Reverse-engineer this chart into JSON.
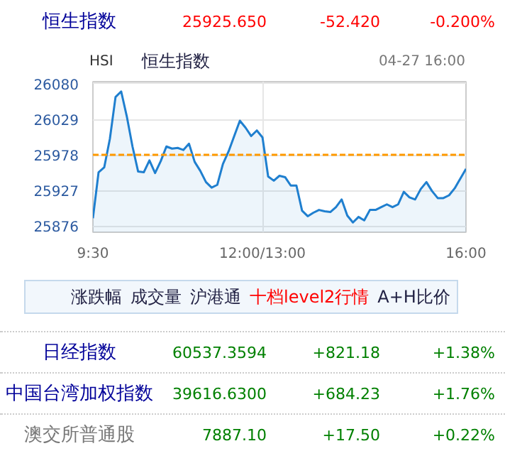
{
  "chart_data": [
    {
      "type": "area",
      "title": "恒生指数",
      "subtitle": "恒生指数",
      "annotations": [
        "25925.650",
        "-52.420",
        "-0.200%",
        "HSI",
        "04-27 16:00"
      ],
      "categories": [
        "9:30",
        null,
        null,
        null,
        null,
        null,
        null,
        null,
        null,
        null,
        null,
        null,
        null,
        null,
        null,
        null,
        null,
        null,
        null,
        null,
        null,
        null,
        null,
        null,
        null,
        null,
        null,
        null,
        null,
        null,
        "12:00/13:00",
        null,
        null,
        null,
        null,
        null,
        null,
        null,
        null,
        null,
        null,
        null,
        null,
        null,
        null,
        null,
        null,
        null,
        null,
        null,
        null,
        null,
        null,
        null,
        null,
        null,
        null,
        null,
        null,
        null,
        null,
        null,
        null,
        null,
        null,
        null,
        "16:00"
      ],
      "series": [
        {
          "color": "#1f7fcf",
          "values": [
            25887,
            25953,
            25960,
            26001,
            26061,
            26069,
            26033,
            25990,
            25954,
            25953,
            25970,
            25952,
            25969,
            25990,
            25987,
            25988,
            25985,
            25994,
            25968,
            25955,
            25939,
            25931,
            25935,
            25965,
            25983,
            26005,
            26027,
            26017,
            26005,
            26013,
            26003,
            25947,
            25941,
            25948,
            25946,
            25934,
            25934,
            25898,
            25890,
            25895,
            25899,
            25897,
            25896,
            25903,
            25914,
            25891,
            25881,
            25889,
            25884,
            25899,
            25899,
            25903,
            25907,
            25903,
            25907,
            25925,
            25917,
            25914,
            25929,
            25939,
            25926,
            25916,
            25916,
            25920,
            25930,
            25944,
            25958
          ]
        }
      ],
      "ylim": [
        25867,
        26083
      ],
      "yticks": [
        25876,
        25927,
        25978,
        26029,
        26080
      ],
      "ref_lines": [
        {
          "axis": "y",
          "value": 25978,
          "color": "#ff9900",
          "line_style": "dashed"
        }
      ],
      "grid": true
    },
    {
      "type": "other",
      "annotations": [
        "涨跌幅",
        "成交量",
        "沪港通",
        "十档level2行情",
        "A+H比价",
        "日经指数",
        "60537.3594",
        "+821.18",
        "+1.38%",
        "中国台湾加权指数",
        "39616.6300",
        "+684.23",
        "+1.76%",
        "澳交所普通股",
        "7887.10",
        "+17.50",
        "+0.22%"
      ]
    }
  ]
}
